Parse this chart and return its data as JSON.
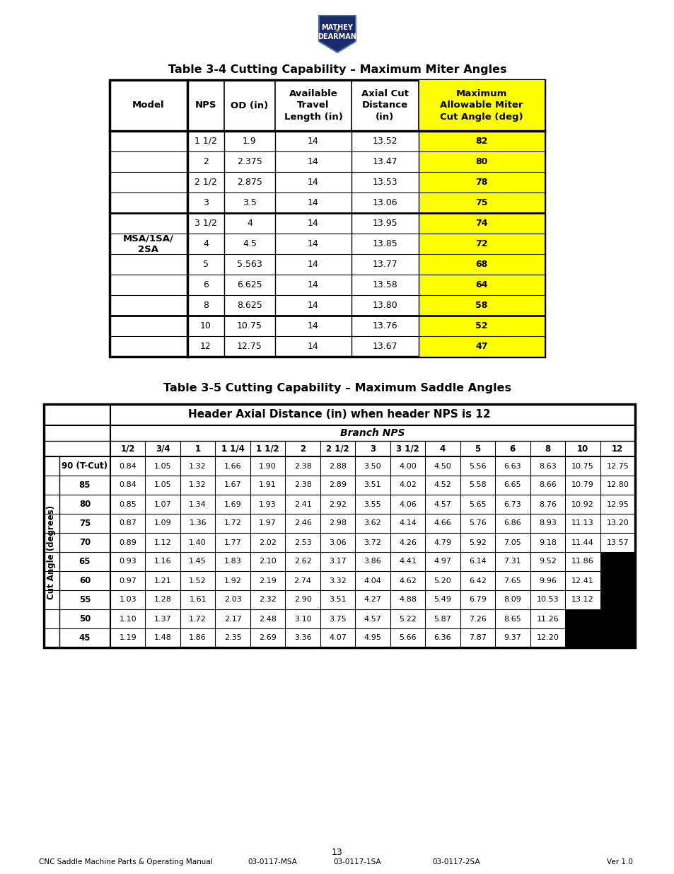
{
  "title1": "Table 3-4 Cutting Capability – Maximum Miter Angles",
  "title2": "Table 3-5 Cutting Capability – Maximum Saddle Angles",
  "table1_model": "MSA/1SA/\n2SA",
  "table1_data": [
    [
      "1 1/2",
      "1.9",
      "14",
      "13.52",
      "82"
    ],
    [
      "2",
      "2.375",
      "14",
      "13.47",
      "80"
    ],
    [
      "2 1/2",
      "2.875",
      "14",
      "13.53",
      "78"
    ],
    [
      "3",
      "3.5",
      "14",
      "13.06",
      "75"
    ],
    [
      "3 1/2",
      "4",
      "14",
      "13.95",
      "74"
    ],
    [
      "4",
      "4.5",
      "14",
      "13.85",
      "72"
    ],
    [
      "5",
      "5.563",
      "14",
      "13.77",
      "68"
    ],
    [
      "6",
      "6.625",
      "14",
      "13.58",
      "64"
    ],
    [
      "8",
      "8.625",
      "14",
      "13.80",
      "58"
    ],
    [
      "10",
      "10.75",
      "14",
      "13.76",
      "52"
    ],
    [
      "12",
      "12.75",
      "14",
      "13.67",
      "47"
    ]
  ],
  "table1_thick_rows": [
    3,
    8
  ],
  "table2_main_header": "Header Axial Distance (in) when header NPS is 12",
  "table2_sub_header": "Branch NPS",
  "table2_col_headers": [
    "1/2",
    "3/4",
    "1",
    "1 1/4",
    "1 1/2",
    "2",
    "2 1/2",
    "3",
    "3 1/2",
    "4",
    "5",
    "6",
    "8",
    "10",
    "12"
  ],
  "table2_row_headers": [
    "90 (T-Cut)",
    "85",
    "80",
    "75",
    "70",
    "65",
    "60",
    "55",
    "50",
    "45"
  ],
  "table2_data": [
    [
      "0.84",
      "1.05",
      "1.32",
      "1.66",
      "1.90",
      "2.38",
      "2.88",
      "3.50",
      "4.00",
      "4.50",
      "5.56",
      "6.63",
      "8.63",
      "10.75",
      "12.75"
    ],
    [
      "0.84",
      "1.05",
      "1.32",
      "1.67",
      "1.91",
      "2.38",
      "2.89",
      "3.51",
      "4.02",
      "4.52",
      "5.58",
      "6.65",
      "8.66",
      "10.79",
      "12.80"
    ],
    [
      "0.85",
      "1.07",
      "1.34",
      "1.69",
      "1.93",
      "2.41",
      "2.92",
      "3.55",
      "4.06",
      "4.57",
      "5.65",
      "6.73",
      "8.76",
      "10.92",
      "12.95"
    ],
    [
      "0.87",
      "1.09",
      "1.36",
      "1.72",
      "1.97",
      "2.46",
      "2.98",
      "3.62",
      "4.14",
      "4.66",
      "5.76",
      "6.86",
      "8.93",
      "11.13",
      "13.20"
    ],
    [
      "0.89",
      "1.12",
      "1.40",
      "1.77",
      "2.02",
      "2.53",
      "3.06",
      "3.72",
      "4.26",
      "4.79",
      "5.92",
      "7.05",
      "9.18",
      "11.44",
      "13.57"
    ],
    [
      "0.93",
      "1.16",
      "1.45",
      "1.83",
      "2.10",
      "2.62",
      "3.17",
      "3.86",
      "4.41",
      "4.97",
      "6.14",
      "7.31",
      "9.52",
      "11.86",
      ""
    ],
    [
      "0.97",
      "1.21",
      "1.52",
      "1.92",
      "2.19",
      "2.74",
      "3.32",
      "4.04",
      "4.62",
      "5.20",
      "6.42",
      "7.65",
      "9.96",
      "12.41",
      ""
    ],
    [
      "1.03",
      "1.28",
      "1.61",
      "2.03",
      "2.32",
      "2.90",
      "3.51",
      "4.27",
      "4.88",
      "5.49",
      "6.79",
      "8.09",
      "10.53",
      "13.12",
      ""
    ],
    [
      "1.10",
      "1.37",
      "1.72",
      "2.17",
      "2.48",
      "3.10",
      "3.75",
      "4.57",
      "5.22",
      "5.87",
      "7.26",
      "8.65",
      "11.26",
      "",
      ""
    ],
    [
      "1.19",
      "1.48",
      "1.86",
      "2.35",
      "2.69",
      "3.36",
      "4.07",
      "4.95",
      "5.66",
      "6.36",
      "7.87",
      "9.37",
      "12.20",
      "",
      ""
    ]
  ],
  "footer_left": "CNC Saddle Machine Parts & Operating Manual",
  "footer_center1": "03-0117-MSA",
  "footer_center2": "03-0117-1SA",
  "footer_center3": "03-0117-2SA",
  "footer_right": "Ver 1.0",
  "footer_page": "13",
  "yellow": "#FFFF00",
  "black": "#000000",
  "white": "#FFFFFF"
}
